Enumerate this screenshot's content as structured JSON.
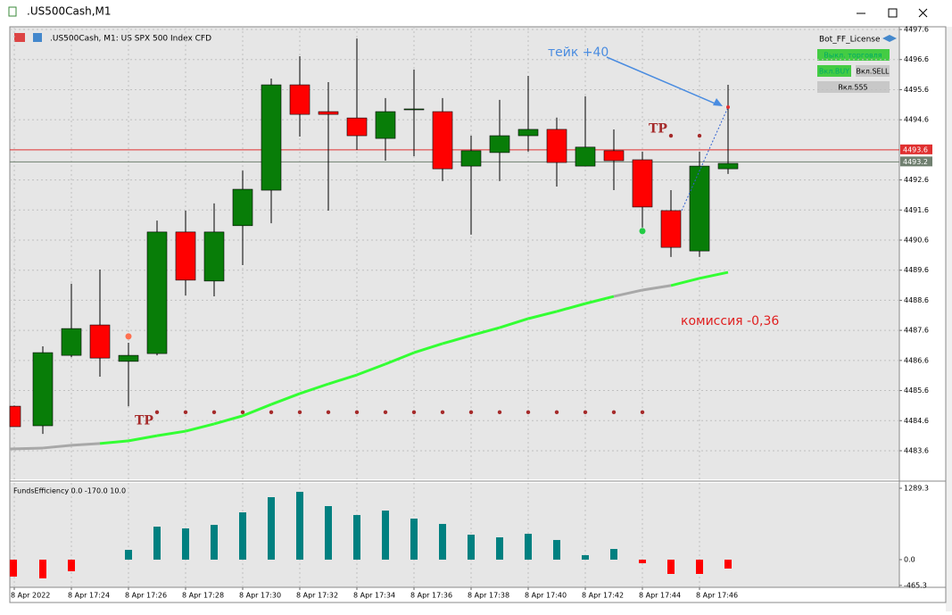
{
  "window": {
    "title": ".US500Cash,M1"
  },
  "chart_header": ".US500Cash, M1:  US SPX 500 Index CFD",
  "panel": {
    "title": "Bot_FF_License",
    "buttons": [
      "Выкл. торговля",
      "Вкл.BUY",
      "Вкл.SELL",
      "Вкл.555"
    ]
  },
  "chart_data": {
    "type": "candlestick",
    "categories": [
      "8 Apr 2022",
      null,
      "8 Apr 17:24",
      null,
      "8 Apr 17:26",
      null,
      "8 Apr 17:28",
      null,
      "8 Apr 17:30",
      null,
      "8 Apr 17:32",
      null,
      "8 Apr 17:34",
      null,
      "8 Apr 17:36",
      null,
      "8 Apr 17:38",
      null,
      "8 Apr 17:40",
      null,
      "8 Apr 17:42",
      null,
      "8 Apr 17:44",
      null,
      "8 Apr 17:46",
      null
    ],
    "open": [
      4485.08,
      4484.43,
      4486.77,
      4487.78,
      4486.57,
      4486.83,
      4490.87,
      4489.24,
      4491.08,
      4492.26,
      4495.76,
      4494.87,
      4494.66,
      4493.98,
      4494.96,
      4494.87,
      4493.06,
      4493.51,
      4494.07,
      4494.28,
      4493.06,
      4493.57,
      4493.27,
      4491.58,
      4490.24,
      4492.97
    ],
    "high": [
      4485.1,
      4487.07,
      4489.15,
      4489.62,
      4487.19,
      4491.25,
      4491.58,
      4491.82,
      4492.91,
      4495.97,
      4496.71,
      4495.85,
      4497.3,
      4495.32,
      4496.27,
      4495.32,
      4494.07,
      4495.26,
      4496.06,
      4494.67,
      4495.38,
      4494.28,
      4493.54,
      4492.26,
      4493.54,
      4495.76
    ],
    "low": [
      4484.4,
      4484.16,
      4486.71,
      4486.06,
      4485.08,
      4486.77,
      4488.76,
      4488.73,
      4489.77,
      4491.16,
      4494.04,
      4491.58,
      4493.6,
      4493.24,
      4493.39,
      4492.56,
      4490.78,
      4492.56,
      4493.54,
      4492.38,
      4493.06,
      4492.26,
      4491.02,
      4490.04,
      4490.04,
      4492.8
    ],
    "close": [
      4484.4,
      4486.86,
      4487.66,
      4486.68,
      4486.77,
      4490.87,
      4489.27,
      4490.87,
      4492.29,
      4495.76,
      4494.78,
      4494.78,
      4494.07,
      4494.87,
      4494.96,
      4492.97,
      4493.57,
      4494.07,
      4494.28,
      4493.18,
      4493.69,
      4493.24,
      4491.7,
      4490.36,
      4493.06,
      4493.15
    ],
    "up_color": "#087d08",
    "down_color": "#ff0000",
    "ma": {
      "values": [
        4483.66,
        4483.69,
        4483.78,
        4483.84,
        4483.93,
        4484.1,
        4484.25,
        4484.49,
        4484.76,
        4485.14,
        4485.5,
        4485.82,
        4486.12,
        4486.48,
        4486.86,
        4487.16,
        4487.43,
        4487.69,
        4487.99,
        4488.23,
        4488.49,
        4488.73,
        4488.94,
        4489.09,
        4489.33,
        4489.53
      ],
      "color": "#33ff33",
      "gray_color": "#a8a8a8",
      "gray_segments": [
        0,
        1,
        2,
        21,
        22
      ]
    },
    "tp_dots": {
      "value": 4484.88,
      "indices": [
        5,
        6,
        7,
        8,
        9,
        10,
        11,
        12,
        13,
        14,
        15,
        16,
        17,
        18,
        19,
        20,
        21,
        22
      ],
      "color": "#a52a2a"
    },
    "tp_dots_upper": {
      "value": 4494.07,
      "indices": [
        23,
        24
      ]
    },
    "tp_labels": [
      {
        "text": "TP",
        "index": 4,
        "value": 4484.6
      },
      {
        "text": "TP",
        "index": 22,
        "value": 4494.3
      }
    ],
    "signal_dots": [
      {
        "index": 4,
        "value": 4487.4,
        "color": "#ff7050"
      },
      {
        "index": 22,
        "value": 4490.9,
        "color": "#22cc44"
      }
    ],
    "levels": [
      {
        "value": 4493.6,
        "color": "#e03030"
      },
      {
        "value": 4493.2,
        "color": "#708070"
      }
    ],
    "take_point": {
      "index": 25,
      "value": 4495.02
    },
    "annotations": [
      {
        "text": "тейк +40",
        "color": "#4a8ce0"
      },
      {
        "text": "комиссия -0,36",
        "color": "#e02020"
      }
    ],
    "ylim": [
      4482.65,
      4497.69
    ],
    "yticks": [
      4497.6,
      4496.6,
      4495.6,
      4494.6,
      4492.6,
      4491.6,
      4490.6,
      4489.6,
      4488.6,
      4487.6,
      4486.6,
      4485.6,
      4484.6,
      4483.6
    ],
    "indicator": {
      "title": "FundsEfficiency 0.0 -170.0 10.0",
      "values": [
        -306,
        -338,
        -210,
        null,
        177,
        596,
        564,
        628,
        854,
        1128,
        1225,
        967,
        806,
        886,
        741,
        645,
        451,
        403,
        467,
        355,
        81,
        193,
        -64,
        -258,
        -258,
        -161
      ],
      "pos_color": "#008080",
      "neg_color": "#ff0000",
      "ylim": [
        -500,
        1386
      ],
      "yticks": [
        1289.3,
        {
          "value": 0,
          "label": "0.0"
        },
        -465.3
      ]
    }
  }
}
